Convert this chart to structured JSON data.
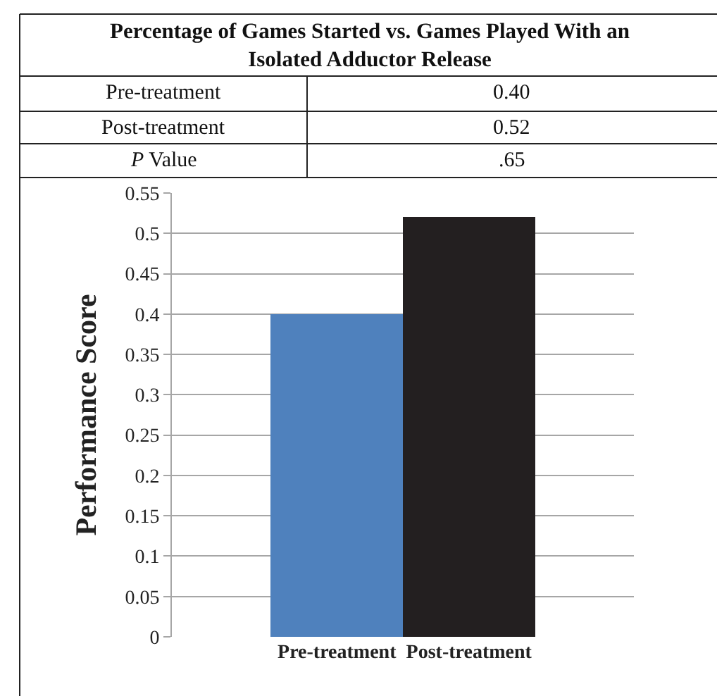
{
  "chart_data": {
    "type": "bar",
    "title": "Percentage of Games Started vs. Games Played With an Isolated Adductor Release",
    "categories": [
      "Pre-treatment",
      "Post-treatment"
    ],
    "values": [
      0.4,
      0.52
    ],
    "colors": [
      "#4f81bd",
      "#231f20"
    ],
    "annotations": [
      "Pre-treatment",
      "0.40",
      "Post-treatment",
      "0.52",
      "P Value",
      ".65"
    ],
    "ylabel": "Performance Score",
    "ylim": [
      0,
      0.55
    ],
    "yticks": [
      0,
      0.05,
      0.1,
      0.15,
      0.2,
      0.25,
      0.3,
      0.35,
      0.4,
      0.45,
      0.5,
      0.55
    ],
    "grid": "y"
  }
}
